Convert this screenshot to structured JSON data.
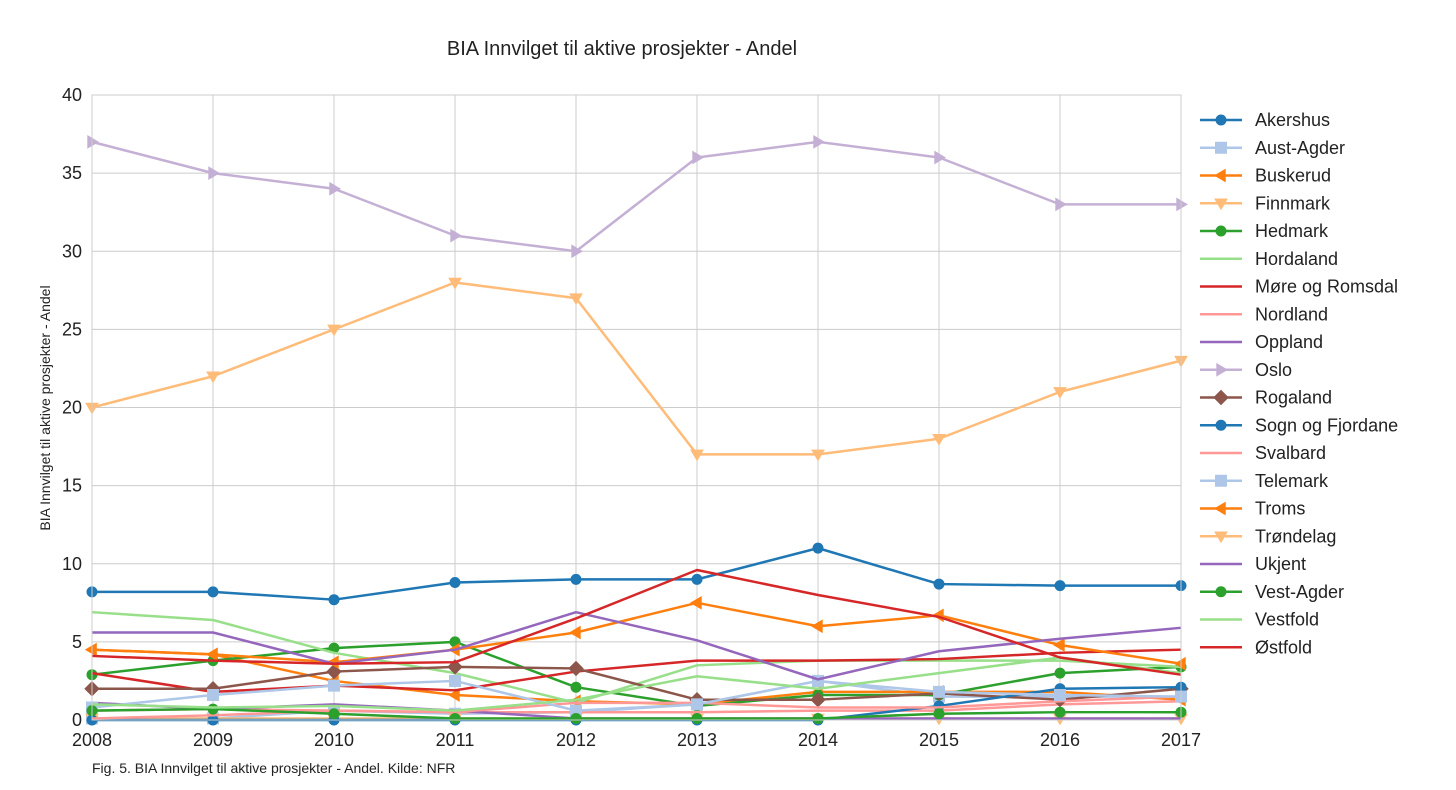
{
  "caption": "Fig. 5. BIA Innvilget til aktive prosjekter - Andel. Kilde: NFR",
  "chart_data": {
    "type": "line",
    "title": "BIA Innvilget til aktive prosjekter - Andel",
    "xlabel": "",
    "ylabel": "BIA Innvilget til aktive prosjekter - Andel",
    "x": [
      2008,
      2009,
      2010,
      2011,
      2012,
      2013,
      2014,
      2015,
      2016,
      2017
    ],
    "ylim": [
      0,
      40
    ],
    "yticks": [
      0,
      5,
      10,
      15,
      20,
      25,
      30,
      35,
      40
    ],
    "grid": true,
    "legend_position": "right",
    "series": [
      {
        "name": "Akershus",
        "color": "#1f77b4",
        "marker": "circle",
        "values": [
          8.2,
          8.2,
          7.7,
          8.8,
          9.0,
          9.0,
          11.0,
          8.7,
          8.6,
          8.6
        ]
      },
      {
        "name": "Aust-Agder",
        "color": "#aec7e8",
        "marker": "square",
        "values": [
          0.1,
          0.1,
          0.6,
          0.4,
          0.5,
          1.0,
          2.5,
          1.5,
          1.5,
          1.5
        ]
      },
      {
        "name": "Buskerud",
        "color": "#ff7f0e",
        "marker": "triangle-left",
        "values": [
          4.5,
          4.2,
          2.5,
          1.6,
          1.2,
          1.0,
          1.8,
          1.8,
          1.8,
          1.3
        ]
      },
      {
        "name": "Finnmark",
        "color": "#ffbb78",
        "marker": "triangle-down",
        "values": [
          0.1,
          0.1,
          0.1,
          0.1,
          0.1,
          0.1,
          0.1,
          0.1,
          0.1,
          0.1
        ]
      },
      {
        "name": "Hedmark",
        "color": "#2ca02c",
        "marker": "circle",
        "values": [
          2.9,
          3.8,
          4.6,
          5.0,
          2.1,
          0.9,
          1.6,
          1.6,
          3.0,
          3.4
        ]
      },
      {
        "name": "Hordaland",
        "color": "#98df8a",
        "marker": "none",
        "values": [
          6.9,
          6.4,
          4.3,
          3.0,
          1.1,
          3.5,
          3.8,
          3.8,
          3.8,
          3.4
        ]
      },
      {
        "name": "Møre og Romsdal",
        "color": "#d62728",
        "marker": "none",
        "values": [
          3.0,
          1.8,
          2.2,
          1.9,
          3.1,
          3.8,
          3.8,
          3.9,
          4.3,
          4.5
        ]
      },
      {
        "name": "Nordland",
        "color": "#ff9896",
        "marker": "none",
        "values": [
          0.6,
          0.7,
          0.6,
          0.5,
          0.5,
          0.5,
          0.6,
          0.6,
          1.0,
          1.2
        ]
      },
      {
        "name": "Oppland",
        "color": "#9467bd",
        "marker": "none",
        "values": [
          1.1,
          0.7,
          1.0,
          0.6,
          0.1,
          0.1,
          0.1,
          0.1,
          0.1,
          0.1
        ]
      },
      {
        "name": "Oslo",
        "color": "#c5b0d5",
        "marker": "triangle-right",
        "values": [
          37,
          35,
          34,
          31,
          30,
          36,
          37,
          36,
          33,
          33
        ]
      },
      {
        "name": "Rogaland",
        "color": "#8c564b",
        "marker": "diamond",
        "values": [
          2.0,
          2.0,
          3.1,
          3.4,
          3.3,
          1.3,
          1.3,
          1.7,
          1.3,
          2.0
        ]
      },
      {
        "name": "Sogn og Fjordane",
        "color": "#1f77b4",
        "marker": "circle",
        "values": [
          0.0,
          0.0,
          0.0,
          0.0,
          0.0,
          0.0,
          0.0,
          0.9,
          2.0,
          2.1
        ]
      },
      {
        "name": "Svalbard",
        "color": "#ff9896",
        "marker": "none",
        "values": [
          0.1,
          0.3,
          0.6,
          0.5,
          1.1,
          1.1,
          0.8,
          0.8,
          1.2,
          1.5
        ]
      },
      {
        "name": "Telemark",
        "color": "#aec7e8",
        "marker": "square",
        "values": [
          0.8,
          1.6,
          2.2,
          2.5,
          0.6,
          1.0,
          2.5,
          1.8,
          1.6,
          1.5
        ]
      },
      {
        "name": "Troms",
        "color": "#ff7f0e",
        "marker": "triangle-left",
        "values": [
          4.5,
          4.2,
          3.7,
          4.5,
          5.6,
          7.5,
          6.0,
          6.7,
          4.8,
          3.6
        ]
      },
      {
        "name": "Trøndelag",
        "color": "#ffbb78",
        "marker": "triangle-down",
        "values": [
          20,
          22,
          25,
          28,
          27,
          17,
          17,
          18,
          21,
          23
        ]
      },
      {
        "name": "Ukjent",
        "color": "#9467bd",
        "marker": "none",
        "values": [
          5.6,
          5.6,
          3.6,
          4.5,
          6.9,
          5.1,
          2.6,
          4.4,
          5.2,
          5.9
        ]
      },
      {
        "name": "Vest-Agder",
        "color": "#2ca02c",
        "marker": "circle",
        "values": [
          0.6,
          0.7,
          0.4,
          0.1,
          0.1,
          0.1,
          0.1,
          0.4,
          0.5,
          0.5
        ]
      },
      {
        "name": "Vestfold",
        "color": "#98df8a",
        "marker": "none",
        "values": [
          1.0,
          0.8,
          0.9,
          0.6,
          1.3,
          2.8,
          2.0,
          3.0,
          4.0,
          3.0
        ]
      },
      {
        "name": "Østfold",
        "color": "#d62728",
        "marker": "none",
        "values": [
          4.1,
          3.8,
          3.6,
          3.7,
          6.5,
          9.6,
          8.0,
          6.6,
          4.0,
          2.9
        ]
      }
    ]
  }
}
